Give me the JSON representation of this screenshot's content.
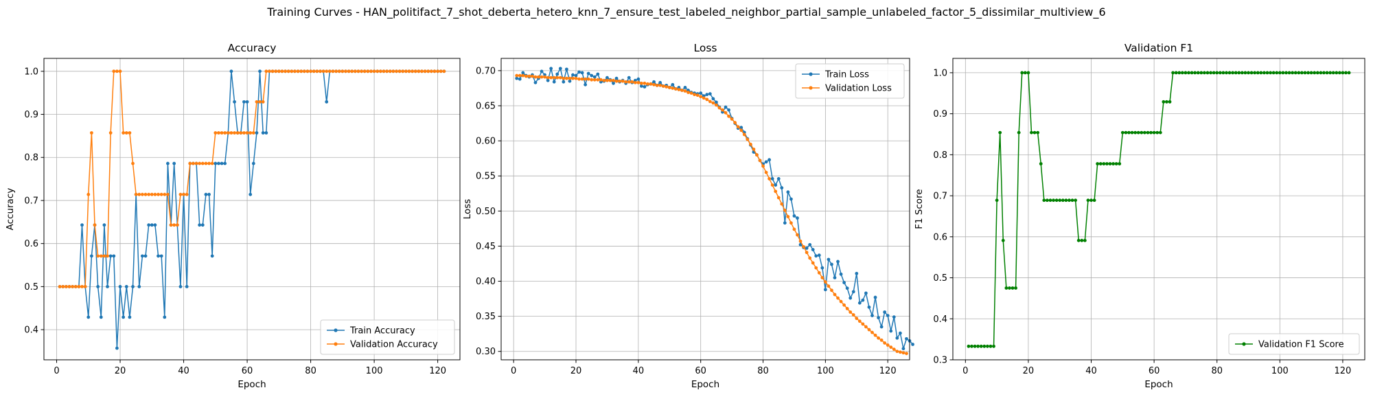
{
  "figure_title": "Training Curves - HAN_politifact_7_shot_deberta_hetero_knn_7_ensure_test_labeled_neighbor_partial_sample_unlabeled_factor_5_dissimilar_multiview_6",
  "colors": {
    "blue": "#1f77b4",
    "orange": "#ff7f0e",
    "green": "#008000",
    "grid": "#b0b0b0"
  },
  "chart_data": [
    {
      "type": "line",
      "title": "Accuracy",
      "xlabel": "Epoch",
      "ylabel": "Accuracy",
      "xlim": [
        -4,
        127
      ],
      "ylim": [
        0.33,
        1.03
      ],
      "xticks": [
        0,
        20,
        40,
        60,
        80,
        100,
        120
      ],
      "yticks": [
        0.4,
        0.5,
        0.6,
        0.7,
        0.8,
        0.9,
        1.0
      ],
      "ytick_labels": [
        "0.4",
        "0.5",
        "0.6",
        "0.7",
        "0.8",
        "0.9",
        "1.0"
      ],
      "grid": true,
      "legend_position": "lower-right",
      "series": [
        {
          "name": "Train Accuracy",
          "color": "#1f77b4",
          "x_start": 1,
          "values": [
            0.5,
            0.5,
            0.5,
            0.5,
            0.5,
            0.5,
            0.5,
            0.643,
            0.5,
            0.429,
            0.571,
            0.643,
            0.5,
            0.429,
            0.643,
            0.5,
            0.571,
            0.571,
            0.357,
            0.5,
            0.429,
            0.5,
            0.429,
            0.5,
            0.714,
            0.5,
            0.571,
            0.571,
            0.643,
            0.643,
            0.643,
            0.571,
            0.571,
            0.429,
            0.786,
            0.643,
            0.786,
            0.643,
            0.5,
            0.714,
            0.5,
            0.786,
            0.786,
            0.786,
            0.643,
            0.643,
            0.714,
            0.714,
            0.571,
            0.786,
            0.786,
            0.786,
            0.786,
            0.857,
            1.0,
            0.929,
            0.857,
            0.857,
            0.929,
            0.929,
            0.714,
            0.786,
            0.857,
            1.0,
            0.857,
            0.857,
            1.0,
            1.0,
            1.0,
            1.0,
            1.0,
            1.0,
            1.0,
            1.0,
            1.0,
            1.0,
            1.0,
            1.0,
            1.0,
            1.0,
            1.0,
            1.0,
            1.0,
            1.0,
            0.929,
            1.0,
            1.0,
            1.0,
            1.0,
            1.0,
            1.0,
            1.0,
            1.0,
            1.0,
            1.0,
            1.0,
            1.0,
            1.0,
            1.0,
            1.0,
            1.0,
            1.0,
            1.0,
            1.0,
            1.0,
            1.0,
            1.0,
            1.0,
            1.0,
            1.0,
            1.0,
            1.0,
            1.0,
            1.0,
            1.0,
            1.0,
            1.0,
            1.0,
            1.0,
            1.0,
            1.0,
            1.0
          ]
        },
        {
          "name": "Validation Accuracy",
          "color": "#ff7f0e",
          "x_start": 1,
          "values": [
            0.5,
            0.5,
            0.5,
            0.5,
            0.5,
            0.5,
            0.5,
            0.5,
            0.5,
            0.714,
            0.857,
            0.643,
            0.571,
            0.571,
            0.571,
            0.571,
            0.857,
            1.0,
            1.0,
            1.0,
            0.857,
            0.857,
            0.857,
            0.786,
            0.714,
            0.714,
            0.714,
            0.714,
            0.714,
            0.714,
            0.714,
            0.714,
            0.714,
            0.714,
            0.714,
            0.643,
            0.643,
            0.643,
            0.714,
            0.714,
            0.714,
            0.786,
            0.786,
            0.786,
            0.786,
            0.786,
            0.786,
            0.786,
            0.786,
            0.857,
            0.857,
            0.857,
            0.857,
            0.857,
            0.857,
            0.857,
            0.857,
            0.857,
            0.857,
            0.857,
            0.857,
            0.857,
            0.929,
            0.929,
            0.929,
            1.0,
            1.0,
            1.0,
            1.0,
            1.0,
            1.0,
            1.0,
            1.0,
            1.0,
            1.0,
            1.0,
            1.0,
            1.0,
            1.0,
            1.0,
            1.0,
            1.0,
            1.0,
            1.0,
            1.0,
            1.0,
            1.0,
            1.0,
            1.0,
            1.0,
            1.0,
            1.0,
            1.0,
            1.0,
            1.0,
            1.0,
            1.0,
            1.0,
            1.0,
            1.0,
            1.0,
            1.0,
            1.0,
            1.0,
            1.0,
            1.0,
            1.0,
            1.0,
            1.0,
            1.0,
            1.0,
            1.0,
            1.0,
            1.0,
            1.0,
            1.0,
            1.0,
            1.0,
            1.0,
            1.0,
            1.0,
            1.0
          ]
        }
      ]
    },
    {
      "type": "line",
      "title": "Loss",
      "xlabel": "Epoch",
      "ylabel": "Loss",
      "xlim": [
        -4,
        127
      ],
      "ylim": [
        0.288,
        0.7175
      ],
      "xticks": [
        0,
        20,
        40,
        60,
        80,
        100,
        120
      ],
      "yticks": [
        0.3,
        0.35,
        0.4,
        0.45,
        0.5,
        0.55,
        0.6,
        0.65,
        0.7
      ],
      "ytick_labels": [
        "0.30",
        "0.35",
        "0.40",
        "0.45",
        "0.50",
        "0.55",
        "0.60",
        "0.65",
        "0.70"
      ],
      "grid": true,
      "legend_position": "upper-right",
      "series": [
        {
          "name": "Train Loss",
          "color": "#1f77b4",
          "x_start": 1,
          "values": [
            0.689,
            0.688,
            0.697,
            0.693,
            0.691,
            0.694,
            0.683,
            0.689,
            0.699,
            0.694,
            0.686,
            0.703,
            0.684,
            0.695,
            0.703,
            0.684,
            0.702,
            0.685,
            0.694,
            0.693,
            0.698,
            0.697,
            0.68,
            0.696,
            0.693,
            0.691,
            0.695,
            0.684,
            0.685,
            0.69,
            0.687,
            0.682,
            0.689,
            0.684,
            0.686,
            0.682,
            0.69,
            0.683,
            0.686,
            0.688,
            0.678,
            0.677,
            0.68,
            0.681,
            0.684,
            0.679,
            0.683,
            0.678,
            0.679,
            0.676,
            0.68,
            0.674,
            0.676,
            0.672,
            0.676,
            0.672,
            0.669,
            0.668,
            0.667,
            0.668,
            0.664,
            0.666,
            0.667,
            0.66,
            0.655,
            0.648,
            0.641,
            0.648,
            0.644,
            0.632,
            0.625,
            0.618,
            0.619,
            0.612,
            0.603,
            0.594,
            0.584,
            0.58,
            0.572,
            0.567,
            0.57,
            0.573,
            0.546,
            0.537,
            0.546,
            0.533,
            0.483,
            0.527,
            0.517,
            0.493,
            0.49,
            0.452,
            0.448,
            0.447,
            0.452,
            0.445,
            0.436,
            0.437,
            0.419,
            0.388,
            0.431,
            0.424,
            0.405,
            0.428,
            0.41,
            0.398,
            0.39,
            0.376,
            0.385,
            0.411,
            0.369,
            0.373,
            0.383,
            0.363,
            0.351,
            0.377,
            0.348,
            0.335,
            0.356,
            0.351,
            0.329,
            0.349,
            0.319,
            0.326,
            0.304,
            0.318,
            0.315,
            0.31
          ]
        },
        {
          "name": "Validation Loss",
          "color": "#ff7f0e",
          "x_start": 1,
          "values": [
            0.693,
            0.693,
            0.693,
            0.692,
            0.692,
            0.692,
            0.691,
            0.691,
            0.691,
            0.691,
            0.69,
            0.69,
            0.69,
            0.69,
            0.69,
            0.689,
            0.689,
            0.689,
            0.689,
            0.689,
            0.688,
            0.688,
            0.688,
            0.688,
            0.687,
            0.687,
            0.687,
            0.687,
            0.686,
            0.686,
            0.686,
            0.686,
            0.685,
            0.685,
            0.685,
            0.684,
            0.684,
            0.684,
            0.683,
            0.683,
            0.682,
            0.682,
            0.681,
            0.681,
            0.68,
            0.679,
            0.679,
            0.678,
            0.677,
            0.676,
            0.675,
            0.674,
            0.673,
            0.672,
            0.671,
            0.669,
            0.668,
            0.666,
            0.665,
            0.663,
            0.661,
            0.659,
            0.656,
            0.654,
            0.651,
            0.647,
            0.644,
            0.64,
            0.635,
            0.631,
            0.626,
            0.62,
            0.615,
            0.609,
            0.602,
            0.595,
            0.588,
            0.58,
            0.572,
            0.564,
            0.555,
            0.546,
            0.537,
            0.528,
            0.519,
            0.51,
            0.501,
            0.492,
            0.483,
            0.474,
            0.466,
            0.457,
            0.449,
            0.441,
            0.433,
            0.426,
            0.419,
            0.412,
            0.405,
            0.399,
            0.393,
            0.387,
            0.381,
            0.376,
            0.371,
            0.366,
            0.361,
            0.356,
            0.352,
            0.347,
            0.343,
            0.339,
            0.335,
            0.331,
            0.327,
            0.323,
            0.319,
            0.316,
            0.312,
            0.309,
            0.306,
            0.303,
            0.3,
            0.299,
            0.298,
            0.297
          ]
        }
      ]
    },
    {
      "type": "line",
      "title": "Validation F1",
      "xlabel": "Epoch",
      "ylabel": "F1 Score",
      "xlim": [
        -4,
        127
      ],
      "ylim": [
        0.3,
        1.035
      ],
      "xticks": [
        0,
        20,
        40,
        60,
        80,
        100,
        120
      ],
      "yticks": [
        0.3,
        0.4,
        0.5,
        0.6,
        0.7,
        0.8,
        0.9,
        1.0
      ],
      "ytick_labels": [
        "0.3",
        "0.4",
        "0.5",
        "0.6",
        "0.7",
        "0.8",
        "0.9",
        "1.0"
      ],
      "grid": true,
      "legend_position": "lower-right",
      "series": [
        {
          "name": "Validation F1 Score",
          "color": "#008000",
          "x_start": 1,
          "values": [
            0.333,
            0.333,
            0.333,
            0.333,
            0.333,
            0.333,
            0.333,
            0.333,
            0.333,
            0.689,
            0.854,
            0.591,
            0.475,
            0.475,
            0.475,
            0.475,
            0.854,
            1.0,
            1.0,
            1.0,
            0.854,
            0.854,
            0.854,
            0.778,
            0.689,
            0.689,
            0.689,
            0.689,
            0.689,
            0.689,
            0.689,
            0.689,
            0.689,
            0.689,
            0.689,
            0.591,
            0.591,
            0.591,
            0.689,
            0.689,
            0.689,
            0.778,
            0.778,
            0.778,
            0.778,
            0.778,
            0.778,
            0.778,
            0.778,
            0.854,
            0.854,
            0.854,
            0.854,
            0.854,
            0.854,
            0.854,
            0.854,
            0.854,
            0.854,
            0.854,
            0.854,
            0.854,
            0.929,
            0.929,
            0.929,
            1.0,
            1.0,
            1.0,
            1.0,
            1.0,
            1.0,
            1.0,
            1.0,
            1.0,
            1.0,
            1.0,
            1.0,
            1.0,
            1.0,
            1.0,
            1.0,
            1.0,
            1.0,
            1.0,
            1.0,
            1.0,
            1.0,
            1.0,
            1.0,
            1.0,
            1.0,
            1.0,
            1.0,
            1.0,
            1.0,
            1.0,
            1.0,
            1.0,
            1.0,
            1.0,
            1.0,
            1.0,
            1.0,
            1.0,
            1.0,
            1.0,
            1.0,
            1.0,
            1.0,
            1.0,
            1.0,
            1.0,
            1.0,
            1.0,
            1.0,
            1.0,
            1.0,
            1.0,
            1.0,
            1.0,
            1.0,
            1.0
          ]
        }
      ]
    }
  ]
}
